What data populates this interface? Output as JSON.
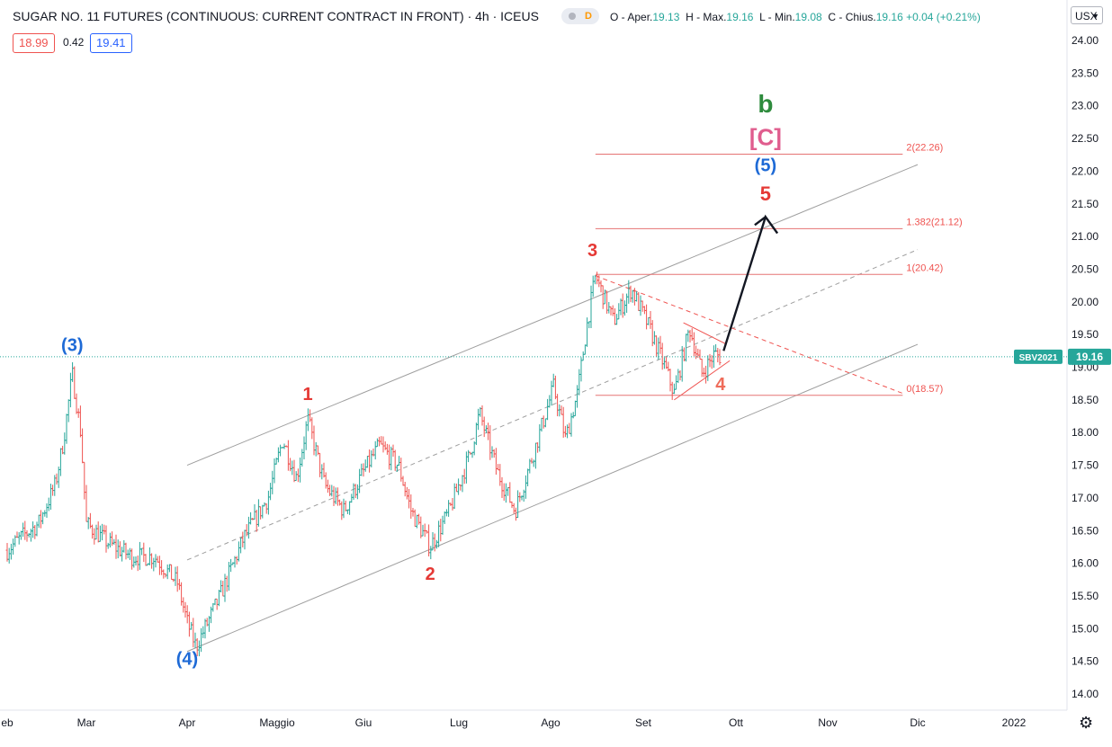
{
  "legend": {
    "title": "SUGAR NO. 11 FUTURES (CONTINUOUS: CURRENT CONTRACT IN FRONT) · 4h · ICEUS",
    "badge_d": "D",
    "ohlc": {
      "open_label": "O - Aper.",
      "open": "19.13",
      "high_label": "H - Max.",
      "high": "19.16",
      "low_label": "L - Min.",
      "low": "19.08",
      "close_label": "C - Chius.",
      "close": "19.16",
      "change": "+0.04 (+0.21%)"
    },
    "bid": "18.99",
    "spread": "0.42",
    "ask": "19.41"
  },
  "currency": "USX",
  "price_tag": {
    "symbol": "SBV2021",
    "value": "19.16"
  },
  "colors": {
    "up": "#26a69a",
    "down": "#ef5350",
    "wave_red": "#e53935",
    "wave_blue": "#1e6ad6",
    "wave_green": "#2e8b3d",
    "wave_pink": "#e05d8e",
    "channel": "#9e9e9e",
    "arrow": "#131722"
  },
  "wave_labels": [
    {
      "text": "(3)",
      "color": "blue",
      "x": "2021-02-24",
      "y": 19.25
    },
    {
      "text": "(4)",
      "color": "blue",
      "x": "2021-04-01",
      "y": 14.45
    },
    {
      "text": "1",
      "color": "red",
      "x": "2021-05-12",
      "y": 18.5
    },
    {
      "text": "2",
      "color": "red",
      "x": "2021-06-22",
      "y": 15.75
    },
    {
      "text": "3",
      "color": "red",
      "x": "2021-08-15",
      "y": 20.7
    },
    {
      "text": "4",
      "color": "salmon",
      "x": "2021-09-26",
      "y": 18.65
    },
    {
      "text": "5",
      "color": "red",
      "x": "2021-10-11",
      "y": 21.55
    },
    {
      "text": "(5)",
      "color": "blue",
      "x": "2021-10-11",
      "y": 22.0
    },
    {
      "text": "[C]",
      "color": "pink",
      "x": "2021-10-11",
      "y": 22.4
    },
    {
      "text": "b",
      "color": "green",
      "x": "2021-10-11",
      "y": 22.9
    }
  ],
  "fib_levels": [
    {
      "label": "2(22.26)",
      "value": 22.26
    },
    {
      "label": "1.382(21.12)",
      "value": 21.12
    },
    {
      "label": "1(20.42)",
      "value": 20.42
    },
    {
      "label": "0(18.57)",
      "value": 18.57
    }
  ],
  "chart_data": {
    "type": "ohlc",
    "title": "SUGAR NO. 11 FUTURES (CONTINUOUS: CURRENT CONTRACT IN FRONT)",
    "interval": "4h",
    "exchange": "ICEUS",
    "x_tick_labels": [
      "eb",
      "Mar",
      "Apr",
      "Maggio",
      "Giu",
      "Lug",
      "Ago",
      "Set",
      "Ott",
      "Nov",
      "Dic",
      "2022"
    ],
    "x_tick_dates": [
      "2021-02-01",
      "2021-03-01",
      "2021-04-01",
      "2021-05-01",
      "2021-06-01",
      "2021-07-01",
      "2021-08-01",
      "2021-09-01",
      "2021-10-01",
      "2021-11-01",
      "2021-12-01",
      "2022-01-01"
    ],
    "y_ticks": [
      "14.00",
      "14.50",
      "15.00",
      "15.50",
      "16.00",
      "16.50",
      "17.00",
      "17.50",
      "18.00",
      "18.50",
      "19.00",
      "19.50",
      "20.00",
      "20.50",
      "21.00",
      "21.50",
      "22.00",
      "22.50",
      "23.00",
      "23.50",
      "24.00"
    ],
    "ylim": [
      13.85,
      24.5
    ],
    "last_price": 19.16,
    "price_path": [
      {
        "x": "2021-02-01",
        "y": 16.2
      },
      {
        "x": "2021-02-06",
        "y": 16.4
      },
      {
        "x": "2021-02-12",
        "y": 16.6
      },
      {
        "x": "2021-02-18",
        "y": 17.2
      },
      {
        "x": "2021-02-21",
        "y": 17.9
      },
      {
        "x": "2021-02-24",
        "y": 18.9
      },
      {
        "x": "2021-02-27",
        "y": 18.0
      },
      {
        "x": "2021-03-01",
        "y": 16.6
      },
      {
        "x": "2021-03-08",
        "y": 16.3
      },
      {
        "x": "2021-03-15",
        "y": 16.1
      },
      {
        "x": "2021-03-22",
        "y": 16.1
      },
      {
        "x": "2021-03-29",
        "y": 15.7
      },
      {
        "x": "2021-04-01",
        "y": 15.1
      },
      {
        "x": "2021-04-04",
        "y": 14.72
      },
      {
        "x": "2021-04-12",
        "y": 15.5
      },
      {
        "x": "2021-04-20",
        "y": 16.4
      },
      {
        "x": "2021-04-28",
        "y": 17.0
      },
      {
        "x": "2021-05-03",
        "y": 17.9
      },
      {
        "x": "2021-05-08",
        "y": 17.3
      },
      {
        "x": "2021-05-12",
        "y": 18.2
      },
      {
        "x": "2021-05-18",
        "y": 17.2
      },
      {
        "x": "2021-05-25",
        "y": 16.8
      },
      {
        "x": "2021-06-01",
        "y": 17.4
      },
      {
        "x": "2021-06-06",
        "y": 17.8
      },
      {
        "x": "2021-06-12",
        "y": 17.5
      },
      {
        "x": "2021-06-16",
        "y": 16.8
      },
      {
        "x": "2021-06-22",
        "y": 16.25
      },
      {
        "x": "2021-06-28",
        "y": 16.8
      },
      {
        "x": "2021-07-05",
        "y": 17.7
      },
      {
        "x": "2021-07-08",
        "y": 18.3
      },
      {
        "x": "2021-07-14",
        "y": 17.4
      },
      {
        "x": "2021-07-20",
        "y": 16.8
      },
      {
        "x": "2021-07-27",
        "y": 17.8
      },
      {
        "x": "2021-08-02",
        "y": 18.7
      },
      {
        "x": "2021-08-06",
        "y": 17.9
      },
      {
        "x": "2021-08-10",
        "y": 18.6
      },
      {
        "x": "2021-08-13",
        "y": 19.6
      },
      {
        "x": "2021-08-16",
        "y": 20.4
      },
      {
        "x": "2021-08-22",
        "y": 19.7
      },
      {
        "x": "2021-08-28",
        "y": 20.2
      },
      {
        "x": "2021-09-03",
        "y": 19.6
      },
      {
        "x": "2021-09-08",
        "y": 19.0
      },
      {
        "x": "2021-09-11",
        "y": 18.6
      },
      {
        "x": "2021-09-16",
        "y": 19.6
      },
      {
        "x": "2021-09-20",
        "y": 18.9
      },
      {
        "x": "2021-09-24",
        "y": 19.2
      },
      {
        "x": "2021-09-26",
        "y": 19.16
      }
    ],
    "channel_lines": [
      {
        "name": "upper",
        "style": "solid",
        "from": {
          "x": "2021-04-01",
          "y": 17.5
        },
        "to": {
          "x": "2021-12-01",
          "y": 22.1
        }
      },
      {
        "name": "middle",
        "style": "dashed",
        "from": {
          "x": "2021-04-01",
          "y": 16.05
        },
        "to": {
          "x": "2021-12-01",
          "y": 20.8
        }
      },
      {
        "name": "lower",
        "style": "solid",
        "from": {
          "x": "2021-04-01",
          "y": 14.65
        },
        "to": {
          "x": "2021-12-01",
          "y": 19.35
        }
      },
      {
        "name": "wedge-top",
        "style": "dashed",
        "from": {
          "x": "2021-08-16",
          "y": 20.4
        },
        "to": {
          "x": "2021-11-26",
          "y": 18.6
        }
      },
      {
        "name": "triangle-top",
        "style": "solid",
        "from": {
          "x": "2021-09-14",
          "y": 19.68
        },
        "to": {
          "x": "2021-09-28",
          "y": 19.35
        }
      },
      {
        "name": "triangle-bottom",
        "style": "solid",
        "from": {
          "x": "2021-09-11",
          "y": 18.5
        },
        "to": {
          "x": "2021-09-29",
          "y": 19.1
        }
      }
    ],
    "projection_arrow": [
      {
        "x": "2021-09-27",
        "y": 19.25
      },
      {
        "x": "2021-10-11",
        "y": 21.3
      },
      {
        "x": "2021-10-15",
        "y": 21.05
      }
    ]
  }
}
